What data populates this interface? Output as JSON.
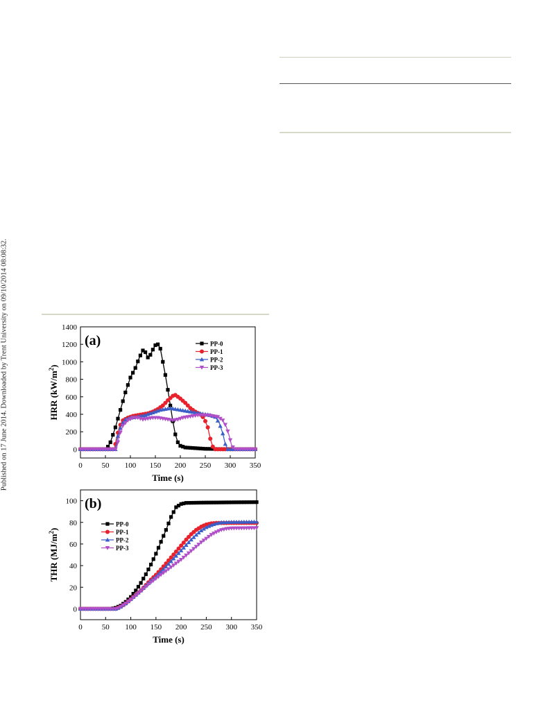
{
  "side_note": "Published on 17 June 2014. Downloaded by Trent University on 09/10/2014 08:08:32.",
  "colors": {
    "PP-0": "#000000",
    "PP-1": "#e8222c",
    "PP-2": "#3a5fc8",
    "PP-3": "#b04fc8",
    "rule": "#d8d8c8"
  },
  "chart_data": [
    {
      "type": "line",
      "panel_label": "(a)",
      "xlabel": "Time (s)",
      "ylabel": "HRR (kW/m²)",
      "ylabel_main": "HRR (kW/m",
      "ylabel_sup": "2",
      "ylabel_tail": ")",
      "xlim": [
        0,
        350
      ],
      "ylim": [
        -100,
        1400
      ],
      "xticks": [
        0,
        50,
        100,
        150,
        200,
        250,
        300,
        350
      ],
      "yticks": [
        0,
        200,
        400,
        600,
        800,
        1000,
        1200,
        1400
      ],
      "legend_position": "top-right",
      "series": [
        {
          "name": "PP-0",
          "marker": "square",
          "points": [
            [
              0,
              0
            ],
            [
              50,
              0
            ],
            [
              55,
              30
            ],
            [
              60,
              80
            ],
            [
              70,
              250
            ],
            [
              80,
              450
            ],
            [
              90,
              650
            ],
            [
              100,
              820
            ],
            [
              110,
              930
            ],
            [
              118,
              1050
            ],
            [
              125,
              1130
            ],
            [
              130,
              1110
            ],
            [
              135,
              1050
            ],
            [
              140,
              1080
            ],
            [
              145,
              1140
            ],
            [
              150,
              1190
            ],
            [
              155,
              1200
            ],
            [
              160,
              1150
            ],
            [
              165,
              1000
            ],
            [
              170,
              850
            ],
            [
              175,
              680
            ],
            [
              180,
              500
            ],
            [
              185,
              320
            ],
            [
              190,
              170
            ],
            [
              195,
              80
            ],
            [
              200,
              40
            ],
            [
              210,
              20
            ],
            [
              250,
              5
            ],
            [
              300,
              0
            ],
            [
              350,
              0
            ]
          ]
        },
        {
          "name": "PP-1",
          "marker": "circle",
          "points": [
            [
              0,
              0
            ],
            [
              68,
              0
            ],
            [
              72,
              120
            ],
            [
              78,
              260
            ],
            [
              85,
              330
            ],
            [
              95,
              360
            ],
            [
              105,
              380
            ],
            [
              115,
              390
            ],
            [
              125,
              400
            ],
            [
              135,
              410
            ],
            [
              145,
              430
            ],
            [
              155,
              460
            ],
            [
              165,
              500
            ],
            [
              175,
              560
            ],
            [
              185,
              610
            ],
            [
              190,
              620
            ],
            [
              200,
              580
            ],
            [
              210,
              530
            ],
            [
              220,
              470
            ],
            [
              230,
              430
            ],
            [
              240,
              400
            ],
            [
              248,
              350
            ],
            [
              255,
              250
            ],
            [
              260,
              120
            ],
            [
              265,
              30
            ],
            [
              270,
              0
            ],
            [
              350,
              0
            ]
          ]
        },
        {
          "name": "PP-2",
          "marker": "triangle-up",
          "points": [
            [
              0,
              0
            ],
            [
              70,
              0
            ],
            [
              75,
              150
            ],
            [
              82,
              280
            ],
            [
              90,
              340
            ],
            [
              100,
              360
            ],
            [
              110,
              370
            ],
            [
              120,
              380
            ],
            [
              130,
              390
            ],
            [
              140,
              410
            ],
            [
              150,
              430
            ],
            [
              160,
              450
            ],
            [
              170,
              460
            ],
            [
              180,
              470
            ],
            [
              190,
              460
            ],
            [
              200,
              450
            ],
            [
              210,
              440
            ],
            [
              220,
              430
            ],
            [
              230,
              420
            ],
            [
              240,
              410
            ],
            [
              250,
              400
            ],
            [
              260,
              390
            ],
            [
              270,
              370
            ],
            [
              278,
              300
            ],
            [
              285,
              180
            ],
            [
              290,
              60
            ],
            [
              295,
              0
            ],
            [
              350,
              0
            ]
          ]
        },
        {
          "name": "PP-3",
          "marker": "triangle-down",
          "points": [
            [
              0,
              0
            ],
            [
              72,
              0
            ],
            [
              78,
              160
            ],
            [
              85,
              270
            ],
            [
              95,
              330
            ],
            [
              105,
              360
            ],
            [
              115,
              360
            ],
            [
              125,
              340
            ],
            [
              135,
              350
            ],
            [
              145,
              360
            ],
            [
              155,
              360
            ],
            [
              165,
              350
            ],
            [
              175,
              340
            ],
            [
              185,
              330
            ],
            [
              195,
              340
            ],
            [
              205,
              360
            ],
            [
              215,
              370
            ],
            [
              225,
              380
            ],
            [
              235,
              390
            ],
            [
              245,
              390
            ],
            [
              255,
              390
            ],
            [
              265,
              380
            ],
            [
              275,
              370
            ],
            [
              285,
              330
            ],
            [
              292,
              260
            ],
            [
              298,
              150
            ],
            [
              302,
              60
            ],
            [
              306,
              10
            ],
            [
              310,
              0
            ],
            [
              350,
              0
            ]
          ]
        }
      ]
    },
    {
      "type": "line",
      "panel_label": "(b)",
      "xlabel": "Time (s)",
      "ylabel": "THR (MJ/m²)",
      "ylabel_main": "THR (MJ/m",
      "ylabel_sup": "2",
      "ylabel_tail": ")",
      "xlim": [
        0,
        350
      ],
      "ylim": [
        -10,
        110
      ],
      "xticks": [
        0,
        50,
        100,
        150,
        200,
        250,
        300,
        350
      ],
      "yticks": [
        0,
        20,
        40,
        60,
        80,
        100
      ],
      "legend_position": "top-left",
      "series": [
        {
          "name": "PP-0",
          "marker": "square",
          "points": [
            [
              0,
              0
            ],
            [
              60,
              0
            ],
            [
              70,
              1
            ],
            [
              80,
              3
            ],
            [
              90,
              6.5
            ],
            [
              100,
              11
            ],
            [
              110,
              17
            ],
            [
              120,
              24
            ],
            [
              130,
              32
            ],
            [
              140,
              41
            ],
            [
              150,
              51
            ],
            [
              160,
              62
            ],
            [
              170,
              73
            ],
            [
              180,
              85
            ],
            [
              190,
              94
            ],
            [
              200,
              97
            ],
            [
              210,
              98
            ],
            [
              250,
              98.3
            ],
            [
              300,
              98.5
            ],
            [
              350,
              98.7
            ]
          ]
        },
        {
          "name": "PP-1",
          "marker": "circle",
          "points": [
            [
              0,
              0
            ],
            [
              70,
              0
            ],
            [
              80,
              2
            ],
            [
              90,
              5
            ],
            [
              100,
              9
            ],
            [
              110,
              13
            ],
            [
              120,
              17
            ],
            [
              130,
              22
            ],
            [
              140,
              27
            ],
            [
              150,
              31.5
            ],
            [
              160,
              36.5
            ],
            [
              170,
              42
            ],
            [
              180,
              47.5
            ],
            [
              190,
              53
            ],
            [
              200,
              58.5
            ],
            [
              210,
              64
            ],
            [
              220,
              69
            ],
            [
              230,
              73
            ],
            [
              240,
              76
            ],
            [
              250,
              78
            ],
            [
              260,
              79
            ],
            [
              270,
              79.4
            ],
            [
              300,
              79.5
            ],
            [
              350,
              79.5
            ]
          ]
        },
        {
          "name": "PP-2",
          "marker": "triangle-up",
          "points": [
            [
              0,
              0
            ],
            [
              72,
              0
            ],
            [
              80,
              2
            ],
            [
              90,
              5
            ],
            [
              100,
              9
            ],
            [
              110,
              13
            ],
            [
              120,
              17
            ],
            [
              130,
              21.5
            ],
            [
              140,
              26
            ],
            [
              150,
              30
            ],
            [
              160,
              34.5
            ],
            [
              170,
              39
            ],
            [
              180,
              44
            ],
            [
              190,
              49
            ],
            [
              200,
              54
            ],
            [
              210,
              59
            ],
            [
              220,
              64
            ],
            [
              230,
              68.5
            ],
            [
              240,
              72.5
            ],
            [
              250,
              75.5
            ],
            [
              260,
              77.5
            ],
            [
              270,
              79
            ],
            [
              280,
              80
            ],
            [
              300,
              80.3
            ],
            [
              350,
              80.5
            ]
          ]
        },
        {
          "name": "PP-3",
          "marker": "triangle-down",
          "points": [
            [
              0,
              0
            ],
            [
              72,
              0
            ],
            [
              80,
              2
            ],
            [
              90,
              5
            ],
            [
              100,
              8.5
            ],
            [
              110,
              12.5
            ],
            [
              120,
              16.5
            ],
            [
              130,
              20.5
            ],
            [
              140,
              24.5
            ],
            [
              150,
              28
            ],
            [
              160,
              31.5
            ],
            [
              170,
              35
            ],
            [
              180,
              38.5
            ],
            [
              190,
              42
            ],
            [
              200,
              45.5
            ],
            [
              210,
              49.5
            ],
            [
              220,
              53.5
            ],
            [
              230,
              57.5
            ],
            [
              240,
              61.5
            ],
            [
              250,
              65
            ],
            [
              260,
              68.5
            ],
            [
              270,
              71
            ],
            [
              280,
              73
            ],
            [
              290,
              74
            ],
            [
              300,
              74.5
            ],
            [
              350,
              74.8
            ]
          ]
        }
      ]
    }
  ]
}
